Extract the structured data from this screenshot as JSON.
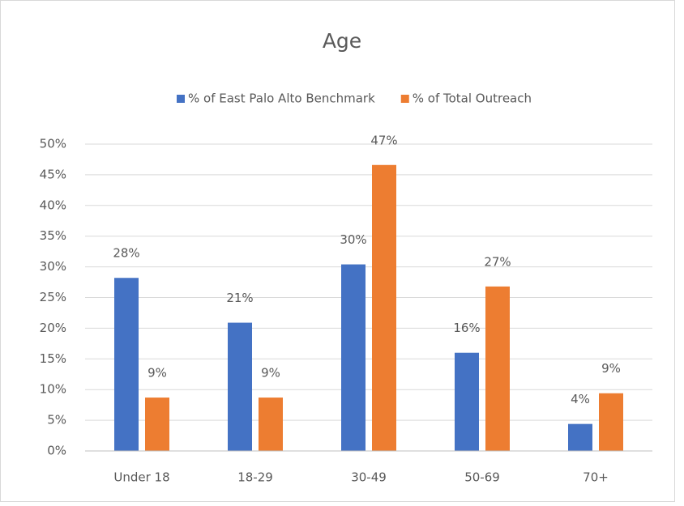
{
  "chart_data": {
    "type": "bar",
    "title": "Age",
    "categories": [
      "Under 18",
      "18-29",
      "30-49",
      "50-69",
      "70+"
    ],
    "series": [
      {
        "name": "% of East Palo Alto Benchmark",
        "color": "#4472c4",
        "values": [
          28.2,
          20.9,
          30.4,
          16.0,
          4.4
        ],
        "value_labels": [
          "28%",
          "21%",
          "30%",
          "16%",
          "4%"
        ]
      },
      {
        "name": "% of Total Outreach",
        "color": "#ed7d31",
        "values": [
          8.7,
          8.7,
          46.6,
          26.8,
          9.4
        ],
        "value_labels": [
          "9%",
          "9%",
          "47%",
          "27%",
          "9%"
        ]
      }
    ],
    "ylim": [
      0,
      50
    ],
    "yticks": [
      {
        "value": 0,
        "label": "0%"
      },
      {
        "value": 5,
        "label": "5%"
      },
      {
        "value": 10,
        "label": "10%"
      },
      {
        "value": 15,
        "label": "15%"
      },
      {
        "value": 20,
        "label": "20%"
      },
      {
        "value": 25,
        "label": "25%"
      },
      {
        "value": 30,
        "label": "30%"
      },
      {
        "value": 35,
        "label": "35%"
      },
      {
        "value": 40,
        "label": "40%"
      },
      {
        "value": 45,
        "label": "45%"
      },
      {
        "value": 50,
        "label": "50%"
      }
    ],
    "grid": true,
    "legend": "top"
  }
}
